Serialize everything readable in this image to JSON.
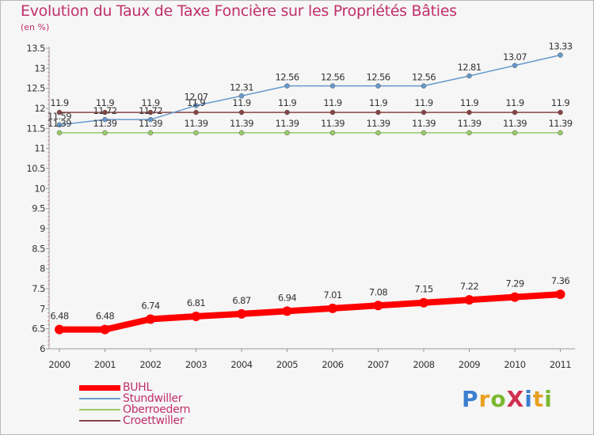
{
  "page": {
    "title": "Evolution du Taux de Taxe Foncière sur les Propriétés Bâties",
    "unit_label": "(en %)"
  },
  "logo": {
    "text": "ProXiti",
    "letters": [
      {
        "ch": "P",
        "color": "#3a7fd0"
      },
      {
        "ch": "r",
        "color": "#e8a020"
      },
      {
        "ch": "o",
        "color": "#7ab830"
      },
      {
        "ch": "X",
        "color": "#d03050"
      },
      {
        "ch": "i",
        "color": "#3a7fd0"
      },
      {
        "ch": "t",
        "color": "#e8a020"
      },
      {
        "ch": "i",
        "color": "#7ab830"
      }
    ]
  },
  "chart_data": {
    "type": "line",
    "title": "Evolution du Taux de Taxe Foncière sur les Propriétés Bâties",
    "ylabel": "(en %)",
    "xlabel": "",
    "ylim": [
      6,
      13.5
    ],
    "yticks": [
      "6",
      "6.5",
      "7",
      "7.5",
      "8",
      "8.5",
      "9",
      "9.5",
      "10",
      "10.5",
      "11",
      "11.5",
      "12",
      "12.5",
      "13",
      "13.5"
    ],
    "x": [
      "2000",
      "2001",
      "2002",
      "2003",
      "2004",
      "2005",
      "2006",
      "2007",
      "2008",
      "2009",
      "2010",
      "2011"
    ],
    "grid": false,
    "legend_position": "bottom-left",
    "series": [
      {
        "name": "BUHL",
        "color": "#ff0000",
        "values": [
          6.48,
          6.48,
          6.74,
          6.81,
          6.87,
          6.94,
          7.01,
          7.08,
          7.15,
          7.22,
          7.29,
          7.36
        ],
        "labels": [
          "6.48",
          "6.48",
          "6.74",
          "6.81",
          "6.87",
          "6.94",
          "7.01",
          "7.08",
          "7.15",
          "7.22",
          "7.29",
          "7.36"
        ]
      },
      {
        "name": "Stundwiller",
        "color": "#6699cc",
        "values": [
          11.59,
          11.72,
          11.72,
          12.07,
          12.31,
          12.56,
          12.56,
          12.56,
          12.56,
          12.81,
          13.07,
          13.33
        ],
        "labels": [
          "11.59",
          "11.72",
          "11.72",
          "12.07",
          "12.31",
          "12.56",
          "12.56",
          "12.56",
          "12.56",
          "12.81",
          "13.07",
          "13.33"
        ]
      },
      {
        "name": "Oberroedern",
        "color": "#99cc66",
        "values": [
          11.39,
          11.39,
          11.39,
          11.39,
          11.39,
          11.39,
          11.39,
          11.39,
          11.39,
          11.39,
          11.39,
          11.39
        ],
        "labels": [
          "11.39",
          "11.39",
          "11.39",
          "11.39",
          "11.39",
          "11.39",
          "11.39",
          "11.39",
          "11.39",
          "11.39",
          "11.39",
          "11.39"
        ]
      },
      {
        "name": "Croettwiller",
        "color": "#884444",
        "values": [
          11.9,
          11.9,
          11.9,
          11.9,
          11.9,
          11.9,
          11.9,
          11.9,
          11.9,
          11.9,
          11.9,
          11.9
        ],
        "labels": [
          "11.9",
          "11.9",
          "11.9",
          "11.9",
          "11.9",
          "11.9",
          "11.9",
          "11.9",
          "11.9",
          "11.9",
          "11.9",
          "11.9"
        ]
      }
    ]
  }
}
